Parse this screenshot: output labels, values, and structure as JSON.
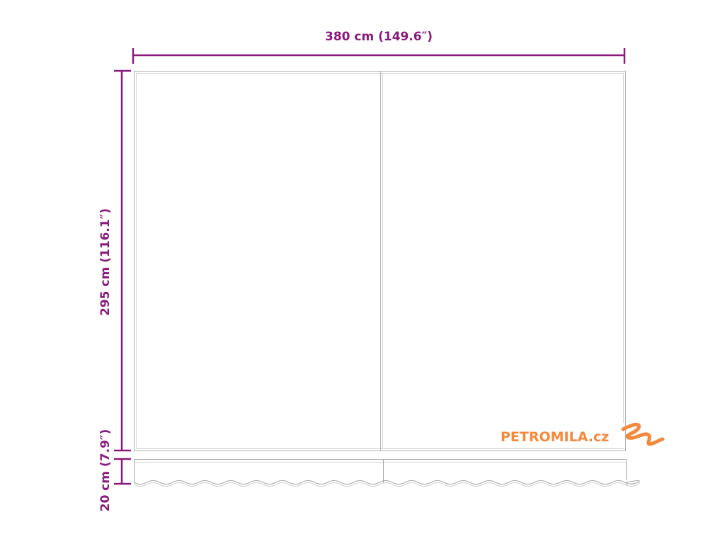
{
  "dimensions": {
    "width_label": "380 cm (149.6″)",
    "height_label": "295 cm (116.1″)",
    "valance_label": "20 cm (7.9″)"
  },
  "logo": {
    "text": "PETROMILA.cz"
  },
  "colors": {
    "dimension": "#8a1a7c",
    "outline": "#b0b0b0",
    "logo": "#f5893b"
  }
}
